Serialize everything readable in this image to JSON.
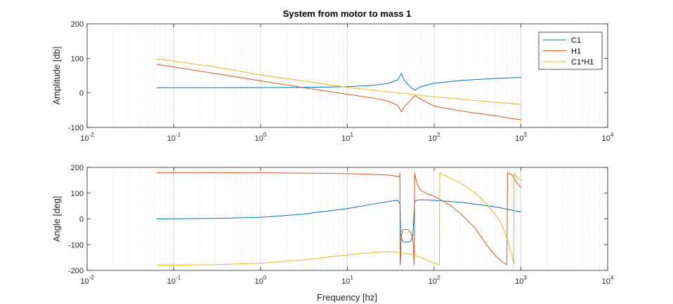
{
  "figure": {
    "title": "System from motor to mass 1",
    "xlabel": "Frequency [hz]"
  },
  "chart_data": [
    {
      "type": "line",
      "title": "System from motor to mass 1",
      "xlabel": "",
      "ylabel": "Amplitude [db]",
      "xscale": "log",
      "xlim": [
        0.01,
        10000
      ],
      "ylim": [
        -100,
        200
      ],
      "xticks": [
        0.01,
        0.1,
        1,
        10,
        100,
        1000,
        10000
      ],
      "xtick_labels": [
        [
          "10",
          "-2"
        ],
        [
          "10",
          "-1"
        ],
        [
          "10",
          "0"
        ],
        [
          "10",
          "1"
        ],
        [
          "10",
          "2"
        ],
        [
          "10",
          "3"
        ],
        [
          "10",
          "4"
        ]
      ],
      "yticks": [
        -100,
        0,
        100,
        200
      ],
      "grid": "x-minor",
      "legend": {
        "placement": "top-right",
        "entries": [
          "C1",
          "H1",
          "C1*H1"
        ]
      },
      "series": [
        {
          "name": "C1",
          "color": "#0072BD",
          "x": [
            0.063,
            0.3,
            1,
            3,
            10,
            20,
            30,
            38,
            42,
            45,
            50,
            55,
            60,
            70,
            100,
            200,
            500,
            1000
          ],
          "y": [
            15,
            15,
            15.5,
            16,
            18,
            22,
            28,
            38,
            56,
            38,
            25,
            14,
            8,
            18,
            28,
            36,
            42,
            45
          ]
        },
        {
          "name": "H1",
          "color": "#D95319",
          "x": [
            0.063,
            0.3,
            1,
            3,
            10,
            20,
            30,
            38,
            42,
            45,
            50,
            55,
            60,
            70,
            100,
            200,
            500,
            1000
          ],
          "y": [
            83,
            56,
            35,
            16,
            -4,
            -15,
            -24,
            -36,
            -55,
            -40,
            -30,
            -18,
            -8,
            -18,
            -38,
            -52,
            -66,
            -78
          ]
        },
        {
          "name": "C1*H1",
          "color": "#EDB120",
          "x": [
            0.063,
            0.3,
            1,
            3,
            10,
            30,
            100,
            300,
            1000
          ],
          "y": [
            99,
            75,
            52,
            35,
            16,
            3,
            -11,
            -22,
            -33
          ]
        }
      ]
    },
    {
      "type": "line",
      "title": "",
      "xlabel": "Frequency [hz]",
      "ylabel": "Angle [deg]",
      "xscale": "log",
      "xlim": [
        0.01,
        10000
      ],
      "ylim": [
        -200,
        200
      ],
      "xticks": [
        0.01,
        0.1,
        1,
        10,
        100,
        1000,
        10000
      ],
      "xtick_labels": [
        [
          "10",
          "-2"
        ],
        [
          "10",
          "-1"
        ],
        [
          "10",
          "0"
        ],
        [
          "10",
          "1"
        ],
        [
          "10",
          "2"
        ],
        [
          "10",
          "3"
        ],
        [
          "10",
          "4"
        ]
      ],
      "yticks": [
        -200,
        -100,
        0,
        100,
        200
      ],
      "grid": "x-minor",
      "series": [
        {
          "name": "C1",
          "color": "#0072BD",
          "x": [
            0.063,
            0.3,
            1,
            3,
            10,
            20,
            30,
            38,
            40.5,
            41,
            43,
            46,
            50,
            54,
            57,
            59.5,
            60,
            62,
            70,
            100,
            200,
            500,
            1000
          ],
          "y": [
            0,
            2,
            6,
            18,
            40,
            58,
            68,
            72,
            60,
            -60,
            -86,
            -90,
            -90,
            -86,
            -60,
            60,
            68,
            72,
            74,
            72,
            65,
            47,
            27
          ]
        },
        {
          "name": "H1",
          "color": "#D95319",
          "x": [
            0.063,
            0.3,
            1,
            3,
            10,
            20,
            30,
            38,
            40,
            40.3,
            40.6,
            41,
            41.5,
            43,
            46,
            50,
            54,
            57,
            58.8,
            59.1,
            59.4,
            59.7,
            60,
            62,
            65,
            70,
            80,
            100,
            150,
            200,
            300,
            400,
            500,
            600,
            690,
            700,
            710,
            800,
            900,
            1000
          ],
          "y": [
            180,
            180,
            179,
            178,
            176,
            173,
            170,
            165,
            163,
            178,
            -178,
            -165,
            -75,
            -44,
            -40,
            -42,
            -54,
            -80,
            -178,
            -120,
            120,
            178,
            175,
            150,
            128,
            112,
            100,
            88,
            55,
            22,
            -38,
            -100,
            -140,
            -165,
            -178,
            180,
            178,
            170,
            140,
            122
          ]
        },
        {
          "name": "C1*H1",
          "color": "#EDB120",
          "x": [
            0.063,
            0.3,
            1,
            3,
            10,
            20,
            30,
            40,
            50,
            60,
            70,
            80,
            90,
            100,
            110,
            115,
            116,
            120,
            150,
            200,
            300,
            400,
            500,
            600,
            700,
            800,
            830,
            835,
            840,
            900,
            1000
          ],
          "y": [
            -180,
            -178,
            -172,
            -160,
            -140,
            -130,
            -128,
            -130,
            -136,
            -142,
            -150,
            -158,
            -166,
            -172,
            -176,
            -178,
            180,
            176,
            160,
            140,
            100,
            60,
            20,
            -20,
            -80,
            -150,
            -178,
            180,
            176,
            160,
            150
          ]
        }
      ]
    }
  ]
}
